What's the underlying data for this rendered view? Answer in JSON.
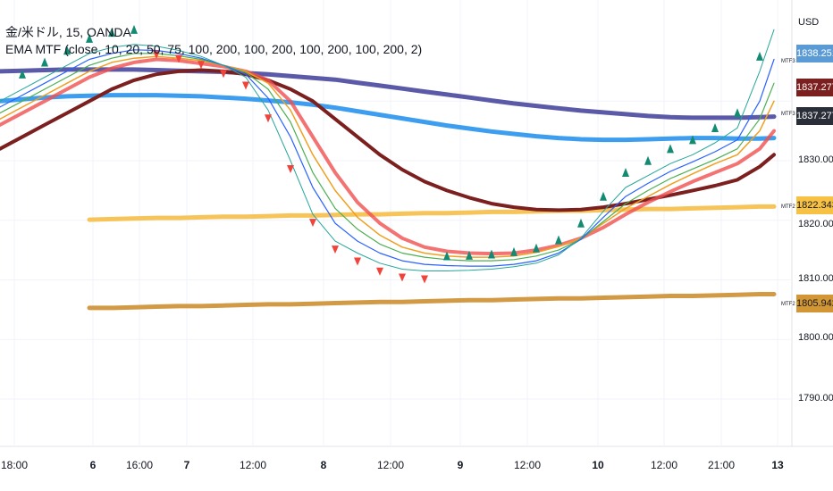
{
  "legend": {
    "title": "金/米ドル, 15, OANDA",
    "indicator": "EMA MTF (close, 10, 20, 50, 75, 100, 200, 100, 200, 100, 200, 100, 200, 2)"
  },
  "price_axis": {
    "currency": "USD",
    "ticks": [
      "1830.000",
      "1820.000",
      "1810.000",
      "1800.000",
      "1790.000"
    ]
  },
  "time_axis": {
    "ticks": [
      {
        "label": "18:00",
        "bold": false
      },
      {
        "label": "6",
        "bold": true
      },
      {
        "label": "16:00",
        "bold": false
      },
      {
        "label": "7",
        "bold": true
      },
      {
        "label": "12:00",
        "bold": false
      },
      {
        "label": "8",
        "bold": true
      },
      {
        "label": "12:00",
        "bold": false
      },
      {
        "label": "9",
        "bold": true
      },
      {
        "label": "12:00",
        "bold": false
      },
      {
        "label": "10",
        "bold": true
      },
      {
        "label": "12:00",
        "bold": false
      },
      {
        "label": "21:00",
        "bold": false
      },
      {
        "label": "13",
        "bold": true
      }
    ]
  },
  "price_tags": [
    {
      "label": "1838.251",
      "color": "#5b9bd5"
    },
    {
      "label": "1837.277",
      "color": "#7b1f1f"
    },
    {
      "label": "1837.277",
      "color": "#2a2e39"
    },
    {
      "label": "1822.343",
      "color": "#f7c244"
    },
    {
      "label": "1805.942",
      "color": "#d39634"
    }
  ],
  "mtf_tags": [
    "MTF3",
    "MTF3",
    "MTF2",
    "MTF2"
  ],
  "colors": {
    "mtf4": "#5b5aa8",
    "mtf3": "#3d9ef0",
    "mtf2_upper": "#f7c45a",
    "mtf2_lower": "#d39a45",
    "ema200": "#7b1f1f",
    "ema100": "#f05050",
    "ema75": "#f0a020",
    "ema50": "#4caf50",
    "ema20": "#2962ff",
    "ema10": "#26a69a",
    "up_marker": "#138a72",
    "down_marker": "#f0433a"
  },
  "chart_data": {
    "type": "line",
    "title": "金/米ドル, 15, OANDA",
    "xlabel": "",
    "ylabel": "USD",
    "ylim": [
      1785,
      1852
    ],
    "x": [
      0,
      25,
      50,
      75,
      100,
      125,
      150,
      175,
      200,
      225,
      250,
      275,
      300,
      325,
      350,
      375,
      400,
      425,
      450,
      475,
      500,
      525,
      550,
      575,
      600,
      625,
      650,
      675,
      700,
      725,
      750,
      775,
      800,
      825,
      850,
      866
    ],
    "series": [
      {
        "name": "MTF4",
        "values": [
          1845.0,
          1845.1,
          1845.2,
          1845.3,
          1845.3,
          1845.3,
          1845.3,
          1845.2,
          1845.1,
          1845.0,
          1844.9,
          1844.7,
          1844.5,
          1844.2,
          1843.9,
          1843.6,
          1843.1,
          1842.6,
          1842.1,
          1841.6,
          1841.1,
          1840.6,
          1840.1,
          1839.6,
          1839.2,
          1838.8,
          1838.4,
          1838.1,
          1837.8,
          1837.5,
          1837.3,
          1837.2,
          1837.2,
          1837.2,
          1837.3,
          1837.4
        ]
      },
      {
        "name": "MTF3",
        "values": [
          1840.0,
          1840.3,
          1840.6,
          1840.8,
          1840.9,
          1841.0,
          1841.0,
          1841.0,
          1840.9,
          1840.8,
          1840.6,
          1840.4,
          1840.1,
          1839.8,
          1839.4,
          1838.9,
          1838.3,
          1837.7,
          1837.1,
          1836.5,
          1835.9,
          1835.4,
          1834.9,
          1834.5,
          1834.1,
          1833.8,
          1833.6,
          1833.5,
          1833.5,
          1833.6,
          1833.7,
          1833.8,
          1833.8,
          1833.7,
          1833.7,
          1833.8
        ]
      },
      {
        "name": "MTF2",
        "values": [
          null,
          null,
          null,
          null,
          1820.1,
          1820.2,
          1820.3,
          1820.4,
          1820.4,
          1820.5,
          1820.6,
          1820.6,
          1820.7,
          1820.8,
          1820.8,
          1820.9,
          1821.0,
          1821.0,
          1821.1,
          1821.2,
          1821.2,
          1821.3,
          1821.4,
          1821.4,
          1821.5,
          1821.6,
          1821.6,
          1821.7,
          1821.8,
          1821.9,
          1821.9,
          1822.0,
          1822.1,
          1822.2,
          1822.3,
          1822.3
        ]
      },
      {
        "name": "MTF2",
        "values": [
          null,
          null,
          null,
          null,
          1805.3,
          1805.3,
          1805.4,
          1805.5,
          1805.6,
          1805.6,
          1805.7,
          1805.8,
          1805.9,
          1805.9,
          1806.0,
          1806.1,
          1806.2,
          1806.3,
          1806.3,
          1806.4,
          1806.5,
          1806.6,
          1806.6,
          1806.7,
          1806.8,
          1806.9,
          1806.9,
          1807.0,
          1807.1,
          1807.2,
          1807.3,
          1807.3,
          1807.4,
          1807.5,
          1807.6,
          1807.6
        ]
      },
      {
        "values": [
          1832.0,
          1834.0,
          1836.0,
          1838.0,
          1840.0,
          1842.0,
          1843.5,
          1844.5,
          1845.0,
          1845.2,
          1845.0,
          1844.5,
          1843.5,
          1842.0,
          1840.0,
          1837.0,
          1834.0,
          1831.0,
          1828.5,
          1826.5,
          1825.0,
          1823.8,
          1822.8,
          1822.2,
          1821.8,
          1821.7,
          1821.8,
          1822.2,
          1822.8,
          1823.5,
          1824.2,
          1825.0,
          1825.8,
          1826.8,
          1829.0,
          1831.0
        ]
      },
      {
        "values": [
          1836.0,
          1838.0,
          1840.0,
          1842.0,
          1844.0,
          1845.5,
          1846.5,
          1847.0,
          1846.8,
          1846.3,
          1845.8,
          1845.0,
          1843.5,
          1840.0,
          1834.0,
          1828.0,
          1823.0,
          1819.5,
          1817.0,
          1815.5,
          1814.8,
          1814.5,
          1814.4,
          1814.5,
          1815.0,
          1815.8,
          1817.0,
          1818.8,
          1821.0,
          1823.0,
          1824.8,
          1826.5,
          1828.0,
          1829.5,
          1832.0,
          1835.0
        ]
      },
      {
        "values": [
          1837.0,
          1839.0,
          1841.0,
          1843.0,
          1845.0,
          1846.5,
          1847.2,
          1847.5,
          1847.2,
          1846.8,
          1846.0,
          1845.0,
          1843.0,
          1838.5,
          1831.0,
          1825.0,
          1820.5,
          1817.5,
          1815.5,
          1814.5,
          1814.0,
          1813.8,
          1813.8,
          1814.0,
          1814.6,
          1815.6,
          1817.0,
          1819.5,
          1822.0,
          1824.0,
          1826.0,
          1827.8,
          1829.5,
          1831.0,
          1835.0,
          1840.0
        ]
      },
      {
        "values": [
          1838.0,
          1840.0,
          1842.0,
          1844.0,
          1846.0,
          1847.2,
          1848.0,
          1848.0,
          1847.6,
          1847.0,
          1846.0,
          1844.8,
          1842.0,
          1836.5,
          1828.0,
          1822.0,
          1818.5,
          1816.0,
          1814.5,
          1813.8,
          1813.4,
          1813.2,
          1813.2,
          1813.4,
          1814.0,
          1815.0,
          1816.8,
          1819.8,
          1822.8,
          1825.0,
          1827.0,
          1828.6,
          1830.2,
          1832.0,
          1837.0,
          1843.0
        ]
      },
      {
        "values": [
          1839.0,
          1841.0,
          1843.0,
          1845.0,
          1847.0,
          1848.0,
          1848.6,
          1848.5,
          1848.0,
          1847.2,
          1846.0,
          1844.5,
          1840.5,
          1834.0,
          1825.5,
          1819.5,
          1816.5,
          1814.5,
          1813.2,
          1812.6,
          1812.4,
          1812.3,
          1812.3,
          1812.6,
          1813.2,
          1814.5,
          1816.8,
          1820.5,
          1824.0,
          1826.2,
          1828.2,
          1829.8,
          1831.5,
          1833.5,
          1840.0,
          1847.0
        ]
      },
      {
        "values": [
          1840.0,
          1842.0,
          1844.0,
          1846.0,
          1848.0,
          1849.0,
          1849.5,
          1849.2,
          1848.5,
          1847.5,
          1846.0,
          1844.0,
          1838.5,
          1830.0,
          1821.0,
          1816.5,
          1814.5,
          1812.8,
          1811.8,
          1811.5,
          1811.5,
          1811.6,
          1811.8,
          1812.2,
          1812.8,
          1814.2,
          1817.0,
          1821.5,
          1825.5,
          1827.5,
          1829.5,
          1831.0,
          1833.0,
          1835.5,
          1845.0,
          1852.0
        ]
      }
    ]
  }
}
